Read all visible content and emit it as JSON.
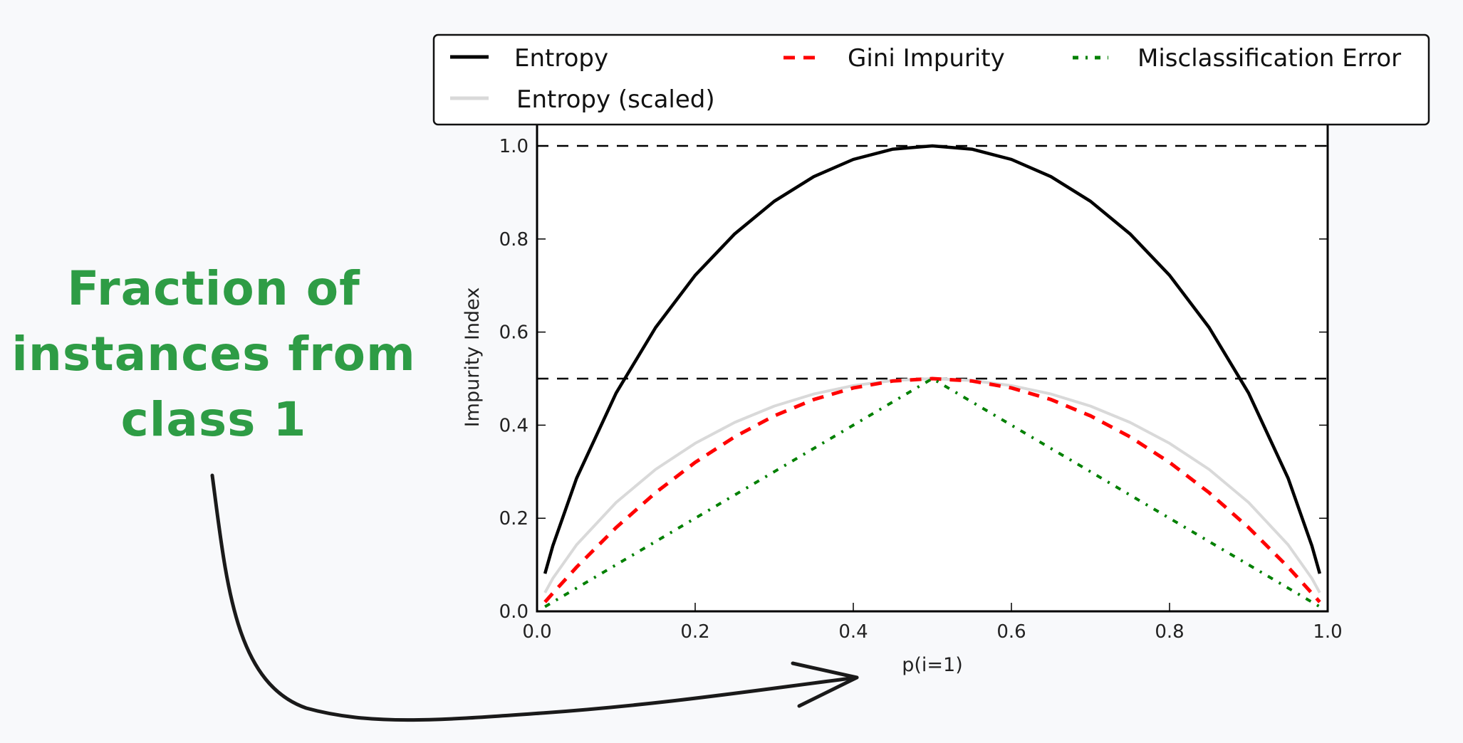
{
  "annotation": {
    "lines": [
      "Fraction of",
      "instances from",
      "class 1"
    ],
    "color": "#2e9c45",
    "arrow_color": "#1a1a1a"
  },
  "colors": {
    "background": "#f8f9fb",
    "entropy": "#000000",
    "entropy_scaled": "#d9d9d9",
    "gini": "#ff0000",
    "misclassification": "#008000"
  },
  "chart_data": {
    "type": "line",
    "title": "",
    "xlabel": "p(i=1)",
    "ylabel": "Impurity Index",
    "xlim": [
      0.0,
      1.0
    ],
    "ylim": [
      0.0,
      1.0
    ],
    "xticks": [
      "0.0",
      "0.2",
      "0.4",
      "0.6",
      "0.8",
      "1.0"
    ],
    "yticks": [
      "0.0",
      "0.2",
      "0.4",
      "0.6",
      "0.8",
      "1.0"
    ],
    "grid": false,
    "hlines": [
      0.5,
      1.0
    ],
    "legend_position": "upper center (outside, above axes)",
    "legend": [
      "Entropy",
      "Entropy (scaled)",
      "Gini Impurity",
      "Misclassification Error"
    ],
    "x": [
      0.01,
      0.02,
      0.05,
      0.1,
      0.15,
      0.2,
      0.25,
      0.3,
      0.35,
      0.4,
      0.45,
      0.5,
      0.55,
      0.6,
      0.65,
      0.7,
      0.75,
      0.8,
      0.85,
      0.9,
      0.95,
      0.98,
      0.99
    ],
    "series": [
      {
        "name": "Entropy",
        "style": "solid",
        "values": [
          0.081,
          0.141,
          0.286,
          0.469,
          0.61,
          0.722,
          0.811,
          0.881,
          0.934,
          0.971,
          0.993,
          1.0,
          0.993,
          0.971,
          0.934,
          0.881,
          0.811,
          0.722,
          0.61,
          0.469,
          0.286,
          0.141,
          0.081
        ]
      },
      {
        "name": "Entropy (scaled)",
        "style": "solid-light",
        "values": [
          0.04,
          0.071,
          0.143,
          0.234,
          0.305,
          0.361,
          0.406,
          0.441,
          0.467,
          0.485,
          0.496,
          0.5,
          0.496,
          0.485,
          0.467,
          0.441,
          0.406,
          0.361,
          0.305,
          0.234,
          0.143,
          0.071,
          0.04
        ]
      },
      {
        "name": "Gini Impurity",
        "style": "dashed",
        "values": [
          0.02,
          0.039,
          0.095,
          0.18,
          0.255,
          0.32,
          0.375,
          0.42,
          0.455,
          0.48,
          0.495,
          0.5,
          0.495,
          0.48,
          0.455,
          0.42,
          0.375,
          0.32,
          0.255,
          0.18,
          0.095,
          0.039,
          0.02
        ]
      },
      {
        "name": "Misclassification Error",
        "style": "dash-dot",
        "values": [
          0.01,
          0.02,
          0.05,
          0.1,
          0.15,
          0.2,
          0.25,
          0.3,
          0.35,
          0.4,
          0.45,
          0.5,
          0.45,
          0.4,
          0.35,
          0.3,
          0.25,
          0.2,
          0.15,
          0.1,
          0.05,
          0.02,
          0.01
        ]
      }
    ]
  }
}
